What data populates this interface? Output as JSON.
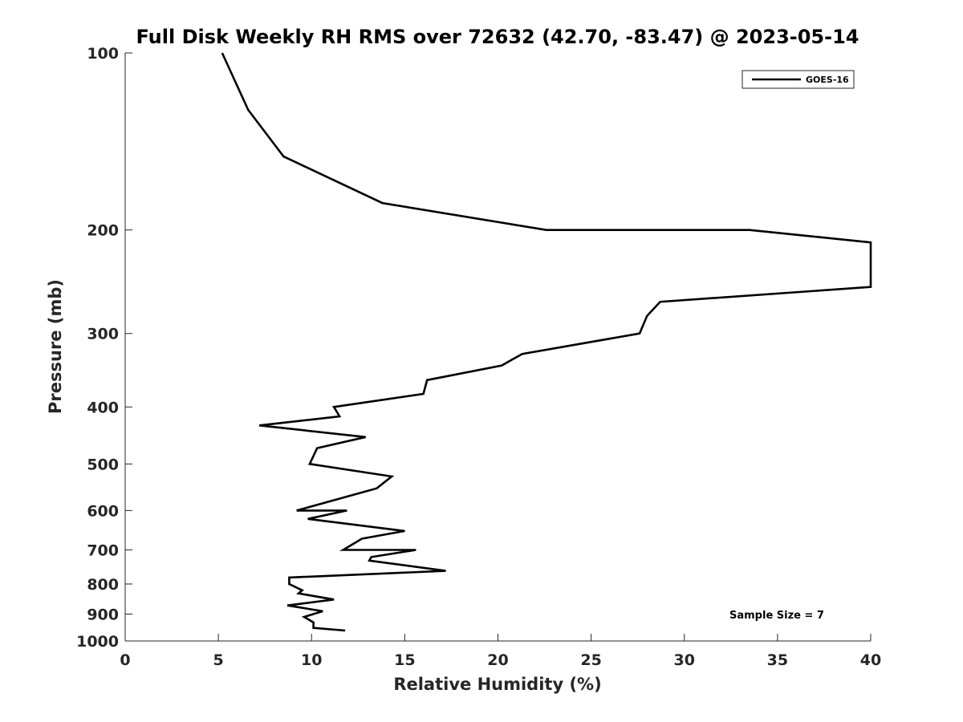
{
  "chart_data": {
    "type": "line",
    "title": "Full Disk Weekly RH RMS over 72632 (42.70, -83.47) @ 2023-05-14",
    "xlabel": "Relative Humidity (%)",
    "ylabel": "Pressure (mb)",
    "xlim": [
      0,
      40
    ],
    "ylim": [
      100,
      1000
    ],
    "y_scale": "log",
    "y_reversed": true,
    "grid": false,
    "legend_position": "top-right",
    "x_ticks": [
      "0",
      "5",
      "10",
      "15",
      "20",
      "25",
      "30",
      "35",
      "40"
    ],
    "y_ticks": [
      "100",
      "200",
      "300",
      "400",
      "500",
      "600",
      "700",
      "800",
      "900",
      "1000"
    ],
    "series": [
      {
        "name": "GOES-16",
        "color": "#000000",
        "points": [
          [
            5.2,
            100
          ],
          [
            6.6,
            125
          ],
          [
            8.5,
            150
          ],
          [
            13.8,
            180
          ],
          [
            22.6,
            200
          ],
          [
            33.5,
            200
          ],
          [
            40.0,
            210
          ],
          [
            40.0,
            250
          ],
          [
            28.7,
            265
          ],
          [
            28.0,
            280
          ],
          [
            27.6,
            300
          ],
          [
            21.3,
            325
          ],
          [
            20.2,
            340
          ],
          [
            16.2,
            360
          ],
          [
            16.0,
            380
          ],
          [
            11.2,
            400
          ],
          [
            11.5,
            415
          ],
          [
            7.2,
            430
          ],
          [
            12.9,
            450
          ],
          [
            10.3,
            470
          ],
          [
            9.9,
            500
          ],
          [
            14.3,
            525
          ],
          [
            13.5,
            550
          ],
          [
            9.2,
            600
          ],
          [
            11.9,
            600
          ],
          [
            9.8,
            620
          ],
          [
            15.0,
            650
          ],
          [
            12.7,
            670
          ],
          [
            11.7,
            700
          ],
          [
            15.6,
            700
          ],
          [
            13.2,
            720
          ],
          [
            13.1,
            730
          ],
          [
            17.2,
            760
          ],
          [
            8.8,
            780
          ],
          [
            8.8,
            800
          ],
          [
            9.5,
            820
          ],
          [
            9.3,
            830
          ],
          [
            11.2,
            850
          ],
          [
            8.7,
            870
          ],
          [
            10.6,
            890
          ],
          [
            9.6,
            910
          ],
          [
            10.1,
            930
          ],
          [
            10.1,
            950
          ],
          [
            11.8,
            960
          ]
        ]
      }
    ],
    "annotation": "Sample Size = 7"
  }
}
